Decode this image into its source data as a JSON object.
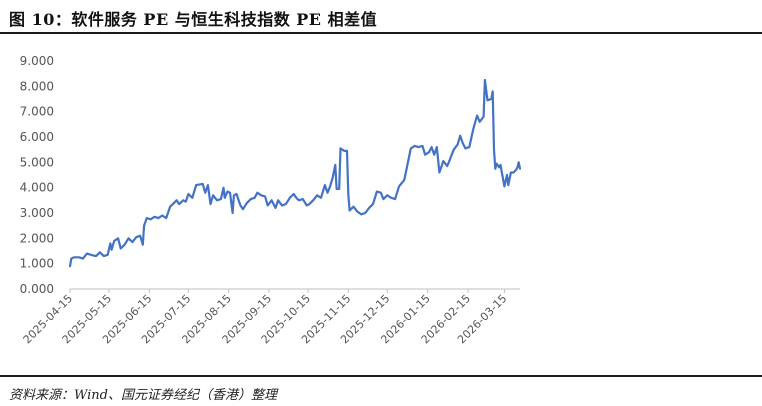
{
  "figure": {
    "title": "图 10：软件服务 PE 与恒生科技指数 PE 相差值",
    "source": "资料来源：Wind、国元证券经纪（香港）整理"
  },
  "chart_data": {
    "type": "line",
    "ylim": [
      0,
      9
    ],
    "y_ticks": [
      "0.000",
      "1.000",
      "2.000",
      "3.000",
      "4.000",
      "5.000",
      "6.000",
      "7.000",
      "8.000",
      "9.000"
    ],
    "x_ticks": [
      "2025-04-15",
      "2025-05-15",
      "2025-06-15",
      "2025-07-15",
      "2025-08-15",
      "2025-09-15",
      "2025-10-15",
      "2025-11-15",
      "2025-12-15",
      "2026-01-15",
      "2026-02-15",
      "2026-03-15"
    ],
    "grid": false,
    "legend": "none",
    "series": [
      {
        "color": "#4472C4",
        "points": [
          [
            "2025-04-15",
            0.9
          ],
          [
            "2025-04-16",
            1.2
          ],
          [
            "2025-04-18",
            1.25
          ],
          [
            "2025-04-22",
            1.25
          ],
          [
            "2025-04-25",
            1.2
          ],
          [
            "2025-04-28",
            1.4
          ],
          [
            "2025-05-01",
            1.35
          ],
          [
            "2025-05-05",
            1.3
          ],
          [
            "2025-05-08",
            1.45
          ],
          [
            "2025-05-11",
            1.3
          ],
          [
            "2025-05-14",
            1.35
          ],
          [
            "2025-05-16",
            1.8
          ],
          [
            "2025-05-17",
            1.55
          ],
          [
            "2025-05-19",
            1.9
          ],
          [
            "2025-05-22",
            2.0
          ],
          [
            "2025-05-24",
            1.6
          ],
          [
            "2025-05-27",
            1.75
          ],
          [
            "2025-05-30",
            2.0
          ],
          [
            "2025-06-02",
            1.85
          ],
          [
            "2025-06-05",
            2.05
          ],
          [
            "2025-06-08",
            2.1
          ],
          [
            "2025-06-10",
            1.75
          ],
          [
            "2025-06-11",
            2.5
          ],
          [
            "2025-06-13",
            2.8
          ],
          [
            "2025-06-16",
            2.75
          ],
          [
            "2025-06-19",
            2.85
          ],
          [
            "2025-06-22",
            2.8
          ],
          [
            "2025-06-25",
            2.9
          ],
          [
            "2025-06-28",
            2.8
          ],
          [
            "2025-07-01",
            3.25
          ],
          [
            "2025-07-04",
            3.4
          ],
          [
            "2025-07-06",
            3.5
          ],
          [
            "2025-07-08",
            3.35
          ],
          [
            "2025-07-11",
            3.5
          ],
          [
            "2025-07-13",
            3.45
          ],
          [
            "2025-07-15",
            3.75
          ],
          [
            "2025-07-18",
            3.6
          ],
          [
            "2025-07-21",
            4.1
          ],
          [
            "2025-07-26",
            4.15
          ],
          [
            "2025-07-28",
            3.8
          ],
          [
            "2025-07-30",
            4.1
          ],
          [
            "2025-08-01",
            3.35
          ],
          [
            "2025-08-03",
            3.7
          ],
          [
            "2025-08-06",
            3.5
          ],
          [
            "2025-08-09",
            3.55
          ],
          [
            "2025-08-11",
            4.0
          ],
          [
            "2025-08-12",
            3.6
          ],
          [
            "2025-08-14",
            3.85
          ],
          [
            "2025-08-16",
            3.8
          ],
          [
            "2025-08-18",
            3.0
          ],
          [
            "2025-08-19",
            3.7
          ],
          [
            "2025-08-21",
            3.75
          ],
          [
            "2025-08-24",
            3.3
          ],
          [
            "2025-08-26",
            3.15
          ],
          [
            "2025-08-29",
            3.4
          ],
          [
            "2025-09-01",
            3.55
          ],
          [
            "2025-09-04",
            3.6
          ],
          [
            "2025-09-06",
            3.8
          ],
          [
            "2025-09-09",
            3.7
          ],
          [
            "2025-09-12",
            3.65
          ],
          [
            "2025-09-14",
            3.3
          ],
          [
            "2025-09-17",
            3.5
          ],
          [
            "2025-09-20",
            3.2
          ],
          [
            "2025-09-22",
            3.5
          ],
          [
            "2025-09-25",
            3.3
          ],
          [
            "2025-09-28",
            3.35
          ],
          [
            "2025-10-01",
            3.6
          ],
          [
            "2025-10-04",
            3.75
          ],
          [
            "2025-10-06",
            3.6
          ],
          [
            "2025-10-08",
            3.5
          ],
          [
            "2025-10-11",
            3.55
          ],
          [
            "2025-10-14",
            3.3
          ],
          [
            "2025-10-16",
            3.35
          ],
          [
            "2025-10-19",
            3.5
          ],
          [
            "2025-10-22",
            3.7
          ],
          [
            "2025-10-25",
            3.6
          ],
          [
            "2025-10-28",
            4.1
          ],
          [
            "2025-10-30",
            3.8
          ],
          [
            "2025-11-01",
            4.05
          ],
          [
            "2025-11-03",
            4.4
          ],
          [
            "2025-11-05",
            4.9
          ],
          [
            "2025-11-06",
            3.95
          ],
          [
            "2025-11-08",
            3.95
          ],
          [
            "2025-11-09",
            5.55
          ],
          [
            "2025-11-12",
            5.45
          ],
          [
            "2025-11-14",
            5.45
          ],
          [
            "2025-11-15",
            3.75
          ],
          [
            "2025-11-16",
            3.1
          ],
          [
            "2025-11-19",
            3.25
          ],
          [
            "2025-11-22",
            3.05
          ],
          [
            "2025-11-25",
            2.95
          ],
          [
            "2025-11-28",
            3.0
          ],
          [
            "2025-12-01",
            3.2
          ],
          [
            "2025-12-04",
            3.35
          ],
          [
            "2025-12-07",
            3.85
          ],
          [
            "2025-12-10",
            3.8
          ],
          [
            "2025-12-12",
            3.55
          ],
          [
            "2025-12-15",
            3.7
          ],
          [
            "2025-12-18",
            3.6
          ],
          [
            "2025-12-21",
            3.55
          ],
          [
            "2025-12-24",
            4.05
          ],
          [
            "2025-12-28",
            4.3
          ],
          [
            "2025-12-31",
            5.05
          ],
          [
            "2026-01-02",
            5.55
          ],
          [
            "2026-01-05",
            5.65
          ],
          [
            "2026-01-08",
            5.6
          ],
          [
            "2026-01-11",
            5.65
          ],
          [
            "2026-01-13",
            5.3
          ],
          [
            "2026-01-16",
            5.4
          ],
          [
            "2026-01-18",
            5.6
          ],
          [
            "2026-01-20",
            5.3
          ],
          [
            "2026-01-22",
            5.6
          ],
          [
            "2026-01-24",
            4.6
          ],
          [
            "2026-01-27",
            5.05
          ],
          [
            "2026-01-30",
            4.85
          ],
          [
            "2026-02-01",
            5.1
          ],
          [
            "2026-02-04",
            5.5
          ],
          [
            "2026-02-07",
            5.7
          ],
          [
            "2026-02-09",
            6.05
          ],
          [
            "2026-02-11",
            5.75
          ],
          [
            "2026-02-13",
            5.55
          ],
          [
            "2026-02-16",
            5.6
          ],
          [
            "2026-02-19",
            6.3
          ],
          [
            "2026-02-22",
            6.85
          ],
          [
            "2026-02-24",
            6.6
          ],
          [
            "2026-02-27",
            6.8
          ],
          [
            "2026-02-28",
            8.25
          ],
          [
            "2026-03-02",
            7.45
          ],
          [
            "2026-03-05",
            7.5
          ],
          [
            "2026-03-06",
            7.8
          ],
          [
            "2026-03-07",
            5.5
          ],
          [
            "2026-03-08",
            4.75
          ],
          [
            "2026-03-09",
            4.95
          ],
          [
            "2026-03-11",
            4.8
          ],
          [
            "2026-03-12",
            4.9
          ],
          [
            "2026-03-15",
            4.05
          ],
          [
            "2026-03-17",
            4.5
          ],
          [
            "2026-03-18",
            4.1
          ],
          [
            "2026-03-20",
            4.6
          ],
          [
            "2026-03-22",
            4.6
          ],
          [
            "2026-03-24",
            4.7
          ],
          [
            "2026-03-25",
            4.8
          ],
          [
            "2026-03-26",
            5.0
          ],
          [
            "2026-03-27",
            4.75
          ]
        ]
      }
    ]
  }
}
